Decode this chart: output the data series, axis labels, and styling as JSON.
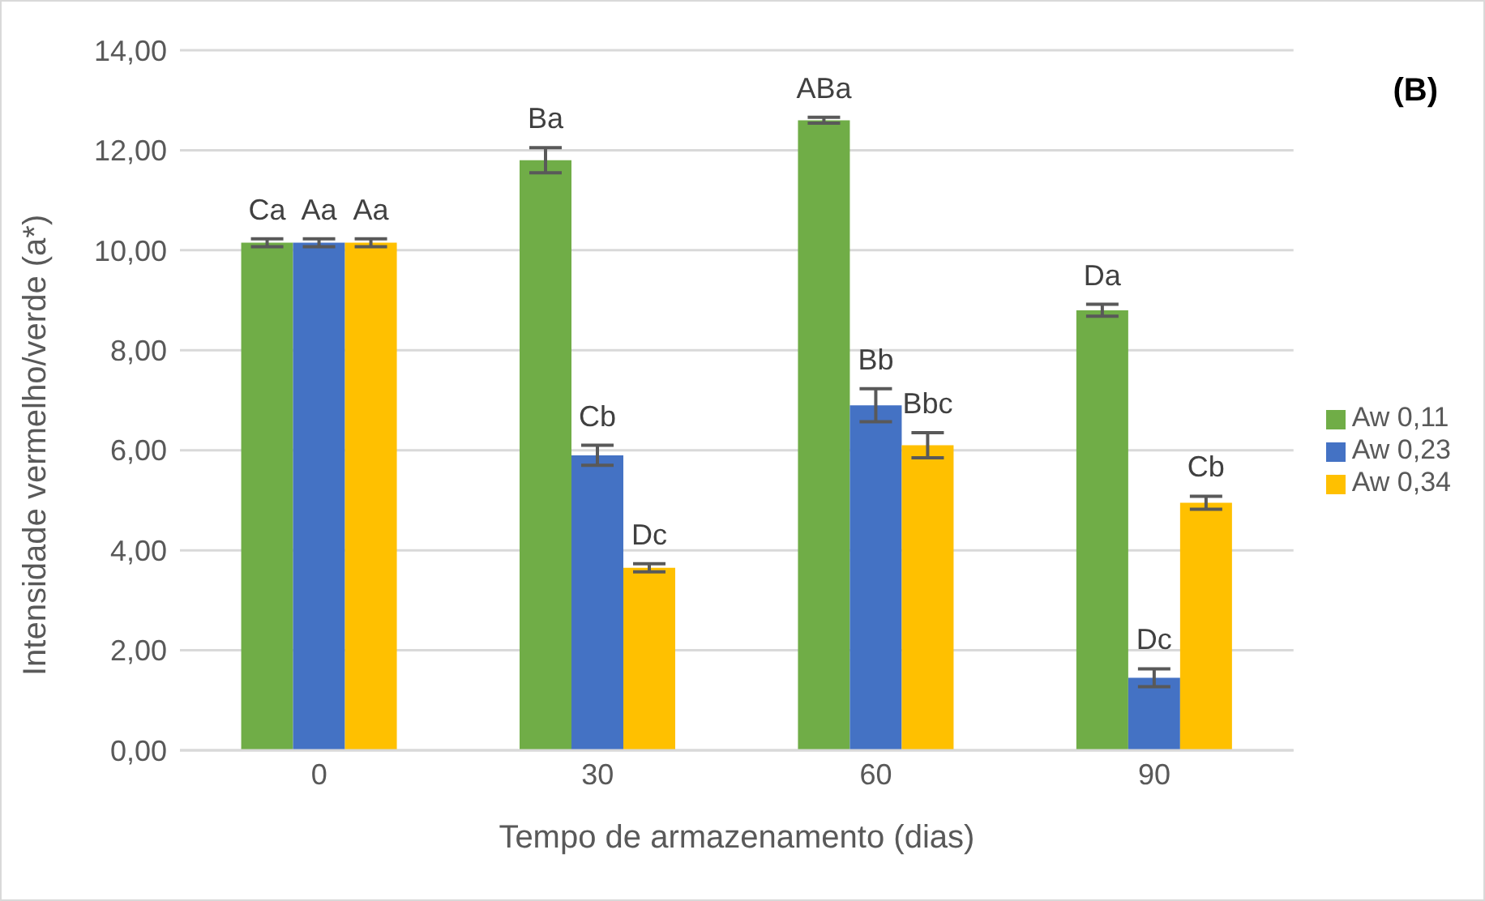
{
  "chart_data": {
    "type": "bar",
    "xlabel": "Tempo de armazenamento (dias)",
    "ylabel": "Intensidade vermelho/verde (a*)",
    "annotations": [
      "(B)"
    ],
    "categories": [
      "0",
      "30",
      "60",
      "90"
    ],
    "series": [
      {
        "name": "Aw 0,11",
        "color": "#70ad47",
        "values": [
          10.15,
          11.8,
          12.6,
          8.8
        ],
        "errors": [
          0.08,
          0.25,
          0.06,
          0.12
        ],
        "value_labels": [
          "Ca",
          "Ba",
          "ABa",
          "Da"
        ]
      },
      {
        "name": "Aw 0,23",
        "color": "#4472c4",
        "values": [
          10.15,
          5.9,
          6.9,
          1.45
        ],
        "errors": [
          0.08,
          0.2,
          0.33,
          0.18
        ],
        "value_labels": [
          "Aa",
          "Cb",
          "Bb",
          "Dc"
        ]
      },
      {
        "name": "Aw 0,34",
        "color": "#ffc000",
        "values": [
          10.15,
          3.65,
          6.1,
          4.95
        ],
        "errors": [
          0.08,
          0.08,
          0.25,
          0.13
        ],
        "value_labels": [
          "Aa",
          "Dc",
          "Bbc",
          "Cb"
        ]
      }
    ],
    "ylim": [
      0,
      14
    ],
    "yticks": [
      {
        "value": 0,
        "label": "0,00"
      },
      {
        "value": 2,
        "label": "2,00"
      },
      {
        "value": 4,
        "label": "4,00"
      },
      {
        "value": 6,
        "label": "6,00"
      },
      {
        "value": 8,
        "label": "8,00"
      },
      {
        "value": 10,
        "label": "10,00"
      },
      {
        "value": 12,
        "label": "12,00"
      },
      {
        "value": 14,
        "label": "14,00"
      }
    ],
    "grid": "y",
    "legend": "right"
  }
}
